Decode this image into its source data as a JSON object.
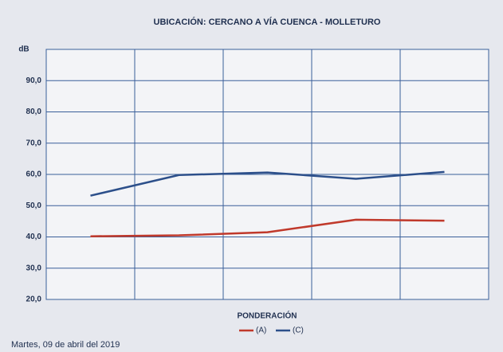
{
  "chart_data": {
    "type": "line",
    "title": "UBICACIÓN: CERCANO A VÍA CUENCA - MOLLETURO",
    "y_label": "dB",
    "x_label": "PONDERACIÓN",
    "footnote": "Martes, 09 de abril del 2019",
    "categories": [
      null,
      null,
      null,
      null,
      null
    ],
    "series": [
      {
        "name": "(A)",
        "color": "#c0392b",
        "values": [
          40.2,
          40.5,
          41.5,
          45.5,
          45.2
        ]
      },
      {
        "name": "(C)",
        "color": "#2c4f8a",
        "values": [
          53.2,
          59.8,
          60.6,
          58.6,
          60.8
        ]
      }
    ],
    "ylim": [
      20,
      100
    ],
    "yticks": [
      {
        "value": 20,
        "label": "20,0"
      },
      {
        "value": 30,
        "label": "30,0"
      },
      {
        "value": 40,
        "label": "40,0"
      },
      {
        "value": 50,
        "label": "50,0"
      },
      {
        "value": 60,
        "label": "60,0"
      },
      {
        "value": 70,
        "label": "70,0"
      },
      {
        "value": 80,
        "label": "80,0"
      },
      {
        "value": 90,
        "label": "90,0"
      }
    ],
    "grid": true,
    "legend": "bottom"
  }
}
